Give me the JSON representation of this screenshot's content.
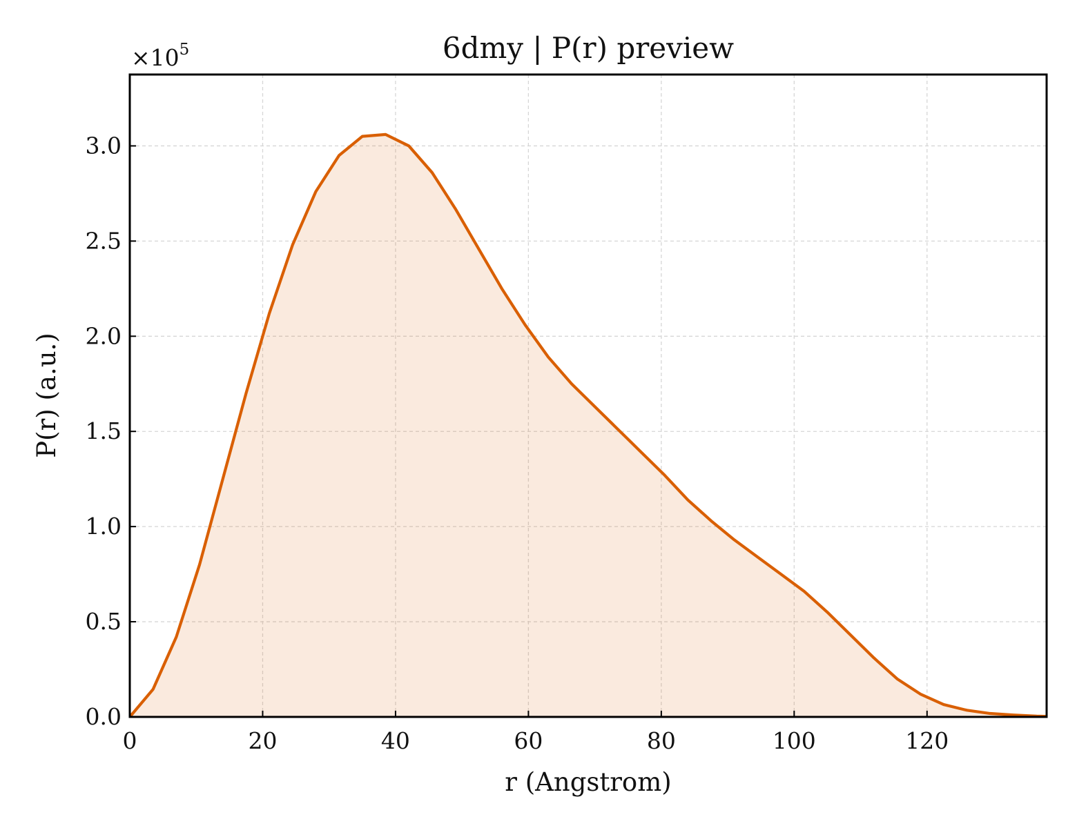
{
  "chart_data": {
    "type": "area",
    "title": "6dmy | P(r) preview",
    "xlabel": "r (Angstrom)",
    "ylabel": "P(r) (a.u.)",
    "y_multiplier": "×10",
    "y_multiplier_exponent": "5",
    "xlim": [
      0,
      138
    ],
    "ylim": [
      0,
      3.375
    ],
    "y_scale": 100000,
    "grid": true,
    "x_ticks": [
      0,
      20,
      40,
      60,
      80,
      100,
      120
    ],
    "x_tick_labels": [
      "0",
      "20",
      "40",
      "60",
      "80",
      "100",
      "120"
    ],
    "y_ticks": [
      0,
      0.5,
      1.0,
      1.5,
      2.0,
      2.5,
      3.0
    ],
    "y_tick_labels": [
      "0.0",
      "0.5",
      "1.0",
      "1.5",
      "2.0",
      "2.5",
      "3.0"
    ],
    "colors": {
      "line": "#d95f02",
      "fill": "#d95f02"
    },
    "series": [
      {
        "x": [
          0,
          3.5,
          7.0,
          10.5,
          14.0,
          17.5,
          21.0,
          24.5,
          28.0,
          31.5,
          35.0,
          38.5,
          42.0,
          45.5,
          49.0,
          52.5,
          56.0,
          59.5,
          63.0,
          66.5,
          70.0,
          73.5,
          77.0,
          80.5,
          84.0,
          87.5,
          91.0,
          94.5,
          98.0,
          101.5,
          105.0,
          108.5,
          112.0,
          115.5,
          119.0,
          122.5,
          126.0,
          129.5,
          133.0,
          136.5,
          138.0
        ],
        "y": [
          0.0,
          0.145,
          0.42,
          0.8,
          1.25,
          1.7,
          2.12,
          2.48,
          2.76,
          2.95,
          3.05,
          3.06,
          3.0,
          2.86,
          2.67,
          2.46,
          2.25,
          2.06,
          1.89,
          1.75,
          1.63,
          1.51,
          1.39,
          1.27,
          1.14,
          1.03,
          0.93,
          0.84,
          0.75,
          0.66,
          0.55,
          0.43,
          0.31,
          0.2,
          0.12,
          0.065,
          0.035,
          0.018,
          0.01,
          0.004,
          0.003
        ]
      }
    ]
  }
}
